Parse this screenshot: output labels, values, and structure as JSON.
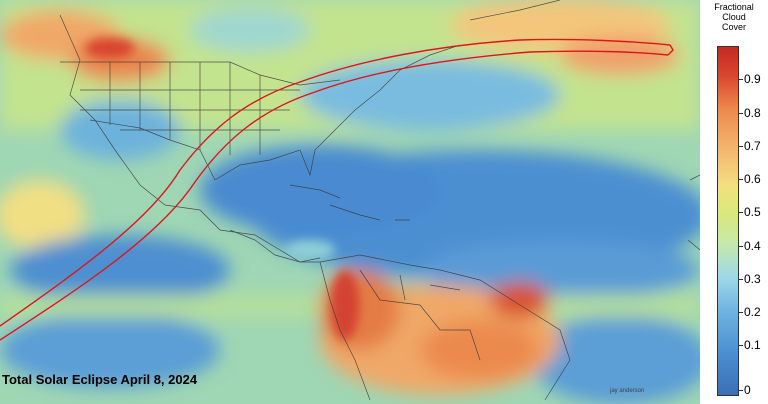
{
  "title": "Total Solar Eclipse April 8, 2024",
  "credit": "jay anderson",
  "legend": {
    "title_lines": [
      "Fractional",
      "Cloud",
      "Cover"
    ],
    "ticks": [
      "0.9",
      "0.8",
      "0.7",
      "0.6",
      "0.5",
      "0.4",
      "0.3",
      "0.2",
      "0.1",
      "0"
    ]
  },
  "colors": {
    "eclipse_path": "#e0141b",
    "land_border": "#3a3a3a",
    "clear_sky": "#3a6fb5",
    "overcast": "#c42a22"
  }
}
